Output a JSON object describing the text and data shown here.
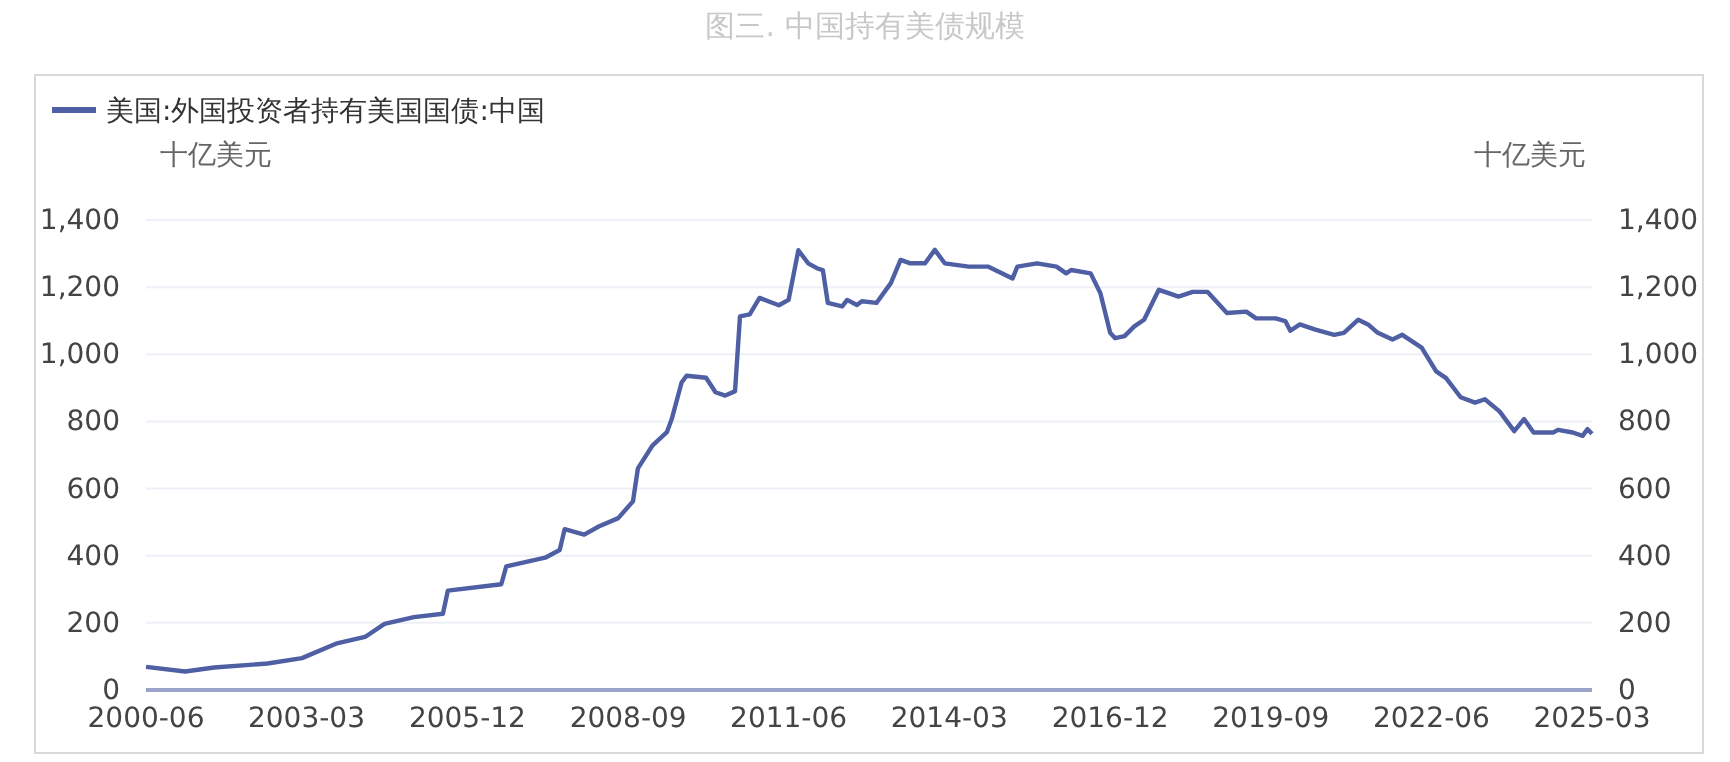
{
  "chart_data": {
    "type": "line",
    "title": "图三. 中国持有美债规模",
    "ylabel": "十亿美元",
    "y2label": "十亿美元",
    "legend": "top left",
    "grid": "y",
    "line_style": "solid",
    "marker": "none",
    "xlim": [
      "2000-06",
      "2025-03"
    ],
    "xticks": [
      "2000-06",
      "2003-03",
      "2005-12",
      "2008-09",
      "2011-06",
      "2014-03",
      "2016-12",
      "2019-09",
      "2022-06",
      "2025-03"
    ],
    "ylim": [
      0,
      1400
    ],
    "yticks": [
      0,
      200,
      400,
      600,
      800,
      {
        "value": 1000,
        "label": "1,000"
      },
      {
        "value": 1200,
        "label": "1,200"
      },
      {
        "value": 1400,
        "label": "1,400"
      }
    ],
    "y2lim": [
      0,
      1400
    ],
    "y2ticks": [
      0,
      200,
      400,
      600,
      800,
      {
        "value": 1000,
        "label": "1,000"
      },
      {
        "value": 1200,
        "label": "1,200"
      },
      {
        "value": 1400,
        "label": "1,400"
      }
    ],
    "series": [
      {
        "name": "美国:外国投资者持有美国国债:中国",
        "color": "#4f5fa3",
        "x": [
          "2000-06",
          "2001-02",
          "2001-08",
          "2002-07",
          "2003-02",
          "2003-09",
          "2004-03",
          "2004-07",
          "2005-01",
          "2005-07",
          "2005-08",
          "2006-07",
          "2006-08",
          "2007-04",
          "2007-07",
          "2007-08",
          "2007-12",
          "2008-03",
          "2008-07",
          "2008-10",
          "2008-11",
          "2009-02",
          "2009-05",
          "2009-06",
          "2009-08",
          "2009-09",
          "2010-01",
          "2010-03",
          "2010-05",
          "2010-07",
          "2010-08",
          "2010-10",
          "2010-12",
          "2011-04",
          "2011-06",
          "2011-08",
          "2011-10",
          "2011-12",
          "2012-01",
          "2012-02",
          "2012-05",
          "2012-06",
          "2012-08",
          "2012-09",
          "2012-12",
          "2013-03",
          "2013-05",
          "2013-07",
          "2013-10",
          "2013-12",
          "2014-02",
          "2014-07",
          "2014-11",
          "2015-04",
          "2015-05",
          "2015-09",
          "2016-01",
          "2016-03",
          "2016-04",
          "2016-08",
          "2016-10",
          "2016-12",
          "2017-01",
          "2017-03",
          "2017-05",
          "2017-07",
          "2017-10",
          "2017-12",
          "2018-02",
          "2018-05",
          "2018-08",
          "2018-12",
          "2019-04",
          "2019-06",
          "2019-10",
          "2019-12",
          "2020-01",
          "2020-03",
          "2020-06",
          "2020-10",
          "2020-12",
          "2021-03",
          "2021-05",
          "2021-07",
          "2021-10",
          "2021-12",
          "2022-04",
          "2022-07",
          "2022-09",
          "2022-12",
          "2023-03",
          "2023-05",
          "2023-08",
          "2023-11",
          "2024-01",
          "2024-03",
          "2024-07",
          "2024-08",
          "2024-11",
          "2025-01",
          "2025-02",
          "2025-03"
        ],
        "values": [
          69,
          55,
          67,
          79,
          95,
          138,
          158,
          197,
          217,
          227,
          296,
          315,
          368,
          394,
          417,
          479,
          463,
          487,
          512,
          562,
          660,
          729,
          768,
          808,
          916,
          936,
          930,
          887,
          877,
          890,
          1113,
          1119,
          1168,
          1146,
          1162,
          1310,
          1271,
          1255,
          1251,
          1153,
          1143,
          1162,
          1147,
          1158,
          1153,
          1212,
          1281,
          1271,
          1271,
          1311,
          1271,
          1261,
          1261,
          1226,
          1261,
          1271,
          1261,
          1241,
          1251,
          1241,
          1182,
          1064,
          1048,
          1054,
          1083,
          1103,
          1192,
          1182,
          1172,
          1186,
          1186,
          1123,
          1127,
          1107,
          1107,
          1099,
          1070,
          1089,
          1074,
          1058,
          1064,
          1103,
          1089,
          1064,
          1044,
          1058,
          1020,
          949,
          929,
          872,
          856,
          866,
          830,
          771,
          807,
          767,
          767,
          775,
          767,
          757,
          777,
          763
        ]
      }
    ]
  }
}
